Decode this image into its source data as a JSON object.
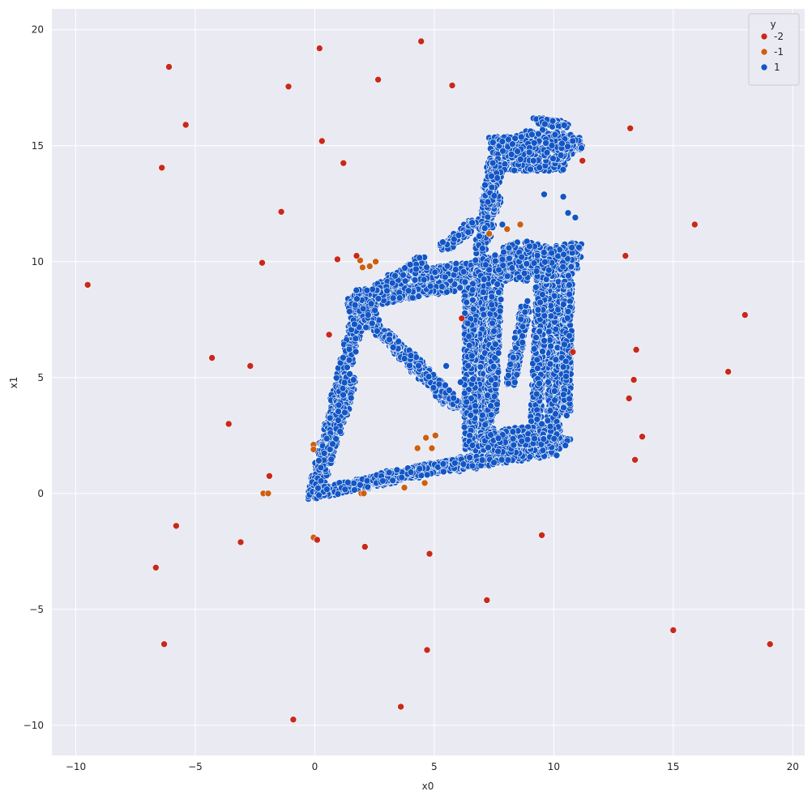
{
  "chart_data": {
    "type": "scatter",
    "xlabel": "x0",
    "ylabel": "x1",
    "xlim": [
      -11,
      20.5
    ],
    "ylim": [
      -11.3,
      20.9
    ],
    "xticks": [
      -10,
      -5,
      0,
      5,
      10,
      15,
      20
    ],
    "yticks": [
      -10,
      -5,
      0,
      5,
      10,
      15,
      20
    ],
    "xtick_labels": [
      "−10",
      "−5",
      "0",
      "5",
      "10",
      "15",
      "20"
    ],
    "ytick_labels": [
      "−10",
      "−5",
      "0",
      "5",
      "10",
      "15",
      "20"
    ],
    "grid": true,
    "background": "#eaeaf2",
    "legend": {
      "title": "y",
      "placement": "top-right",
      "entries": [
        {
          "label": "-2",
          "color": "#c8291a"
        },
        {
          "label": "-1",
          "color": "#cc5f12"
        },
        {
          "label": "1",
          "color": "#1256c6"
        }
      ]
    },
    "series": [
      {
        "name": "-2",
        "color": "#c8291a",
        "points": [
          [
            -9.5,
            9.0
          ],
          [
            -6.1,
            18.4
          ],
          [
            -5.4,
            15.9
          ],
          [
            -6.4,
            14.05
          ],
          [
            -1.1,
            17.55
          ],
          [
            0.2,
            19.2
          ],
          [
            0.3,
            15.2
          ],
          [
            1.2,
            14.25
          ],
          [
            2.65,
            17.85
          ],
          [
            4.45,
            19.5
          ],
          [
            5.75,
            17.6
          ],
          [
            -1.4,
            12.15
          ],
          [
            -2.2,
            9.95
          ],
          [
            0.95,
            10.1
          ],
          [
            1.75,
            10.25
          ],
          [
            -4.3,
            5.85
          ],
          [
            -2.7,
            5.5
          ],
          [
            -3.6,
            3.0
          ],
          [
            -1.9,
            0.75
          ],
          [
            -5.8,
            -1.4
          ],
          [
            -3.1,
            -2.1
          ],
          [
            -6.65,
            -3.2
          ],
          [
            -6.3,
            -6.5
          ],
          [
            0.1,
            -2.0
          ],
          [
            2.1,
            -2.3
          ],
          [
            4.8,
            -2.6
          ],
          [
            7.2,
            -4.6
          ],
          [
            4.7,
            -6.75
          ],
          [
            3.6,
            -9.2
          ],
          [
            -0.9,
            -9.75
          ],
          [
            6.15,
            7.55
          ],
          [
            10.8,
            6.1
          ],
          [
            11.2,
            14.35
          ],
          [
            13.2,
            15.75
          ],
          [
            13.0,
            10.25
          ],
          [
            15.9,
            11.6
          ],
          [
            18.0,
            7.7
          ],
          [
            13.45,
            6.2
          ],
          [
            13.35,
            4.9
          ],
          [
            13.15,
            4.1
          ],
          [
            13.7,
            2.45
          ],
          [
            13.4,
            1.45
          ],
          [
            17.3,
            5.25
          ],
          [
            9.5,
            -1.8
          ],
          [
            15.0,
            -5.9
          ],
          [
            19.05,
            -6.5
          ],
          [
            0.6,
            6.85
          ]
        ]
      },
      {
        "name": "-1",
        "color": "#cc5f12",
        "points": [
          [
            1.9,
            10.05
          ],
          [
            2.0,
            9.75
          ],
          [
            2.3,
            9.8
          ],
          [
            2.55,
            10.0
          ],
          [
            7.3,
            11.2
          ],
          [
            8.05,
            11.4
          ],
          [
            8.6,
            11.6
          ],
          [
            4.3,
            1.95
          ],
          [
            4.65,
            2.4
          ],
          [
            5.05,
            2.5
          ],
          [
            4.9,
            1.95
          ],
          [
            4.6,
            0.45
          ],
          [
            3.75,
            0.25
          ],
          [
            -0.05,
            2.1
          ],
          [
            -0.05,
            1.9
          ],
          [
            -2.15,
            0.0
          ],
          [
            -1.95,
            0.0
          ],
          [
            1.95,
            0.0
          ],
          [
            2.05,
            0.0
          ],
          [
            -0.05,
            -1.9
          ]
        ]
      },
      {
        "name": "1",
        "color": "#1256c6",
        "segments": [
          [
            [
              0,
              0
            ],
            [
              2,
              8.5
            ],
            0.55
          ],
          [
            [
              0,
              0
            ],
            [
              1.5,
              5
            ],
            0.55
          ],
          [
            [
              0,
              0
            ],
            [
              7,
              1.5
            ],
            0.45
          ],
          [
            [
              2.5,
              0.6
            ],
            [
              10.5,
              2.2
            ],
            0.45
          ],
          [
            [
              1.5,
              8.2
            ],
            [
              11,
              10
            ],
            0.55
          ],
          [
            [
              4,
              9.3
            ],
            [
              11,
              10.6
            ],
            0.5
          ],
          [
            [
              1.6,
              8.0
            ],
            [
              4.5,
              10.0
            ],
            0.5
          ],
          [
            [
              2,
              7.8
            ],
            [
              5.8,
              3.8
            ],
            0.45
          ],
          [
            [
              3,
              6.8
            ],
            [
              6.2,
              3.6
            ],
            0.45
          ],
          [
            [
              5.4,
              10.6
            ],
            [
              7.5,
              12.3
            ],
            0.4
          ],
          [
            [
              6.9,
              10.5
            ],
            [
              7.6,
              13
            ],
            0.5
          ],
          [
            [
              7,
              10
            ],
            [
              7.2,
              1.5
            ],
            0.6
          ],
          [
            [
              6.5,
              9
            ],
            [
              6.5,
              2
            ],
            0.5
          ],
          [
            [
              7.6,
              9
            ],
            [
              7.4,
              3.5
            ],
            0.45
          ],
          [
            [
              8.8,
              8
            ],
            [
              8.2,
              4.8
            ],
            0.4
          ],
          [
            [
              10,
              10
            ],
            [
              10,
              2.5
            ],
            0.55
          ],
          [
            [
              10.6,
              10
            ],
            [
              10.5,
              3.5
            ],
            0.4
          ],
          [
            [
              9.5,
              9.5
            ],
            [
              9.2,
              1.8
            ],
            0.45
          ],
          [
            [
              7,
              2.3
            ],
            [
              10,
              2.6
            ],
            0.75
          ],
          [
            [
              5.8,
              1.2
            ],
            [
              10,
              1.9
            ],
            0.5
          ],
          [
            [
              7.5,
              15
            ],
            [
              11,
              15.2
            ],
            0.75
          ],
          [
            [
              8,
              14.2
            ],
            [
              10.5,
              14.2
            ],
            0.6
          ],
          [
            [
              7.2,
              12.4
            ],
            [
              7.6,
              15.2
            ],
            0.45
          ],
          [
            [
              7.8,
              14.4
            ],
            [
              7.3,
              13.0
            ],
            0.5
          ],
          [
            [
              9.2,
              16.1
            ],
            [
              10.5,
              15.9
            ],
            0.3
          ],
          [
            [
              10.2,
              14.6
            ],
            [
              11.1,
              15.1
            ],
            0.4
          ]
        ],
        "blobs": [
          [
            [
              9,
              10
            ],
            1.6,
            0.9
          ],
          [
            [
              8.5,
              2.2
            ],
            1.6,
            0.5
          ],
          [
            [
              2,
              8
            ],
            0.6,
            0.9
          ],
          [
            [
              9.3,
              15
            ],
            1.7,
            0.7
          ]
        ],
        "outliers": [
          [
            9.6,
            12.9
          ],
          [
            10.4,
            12.8
          ],
          [
            10.6,
            12.1
          ],
          [
            10.9,
            11.9
          ],
          [
            7.85,
            11.6
          ],
          [
            8.7,
            7.2
          ],
          [
            8.9,
            8.3
          ],
          [
            9.5,
            3.0
          ],
          [
            5.5,
            5.5
          ],
          [
            6.1,
            4.8
          ]
        ]
      }
    ]
  }
}
